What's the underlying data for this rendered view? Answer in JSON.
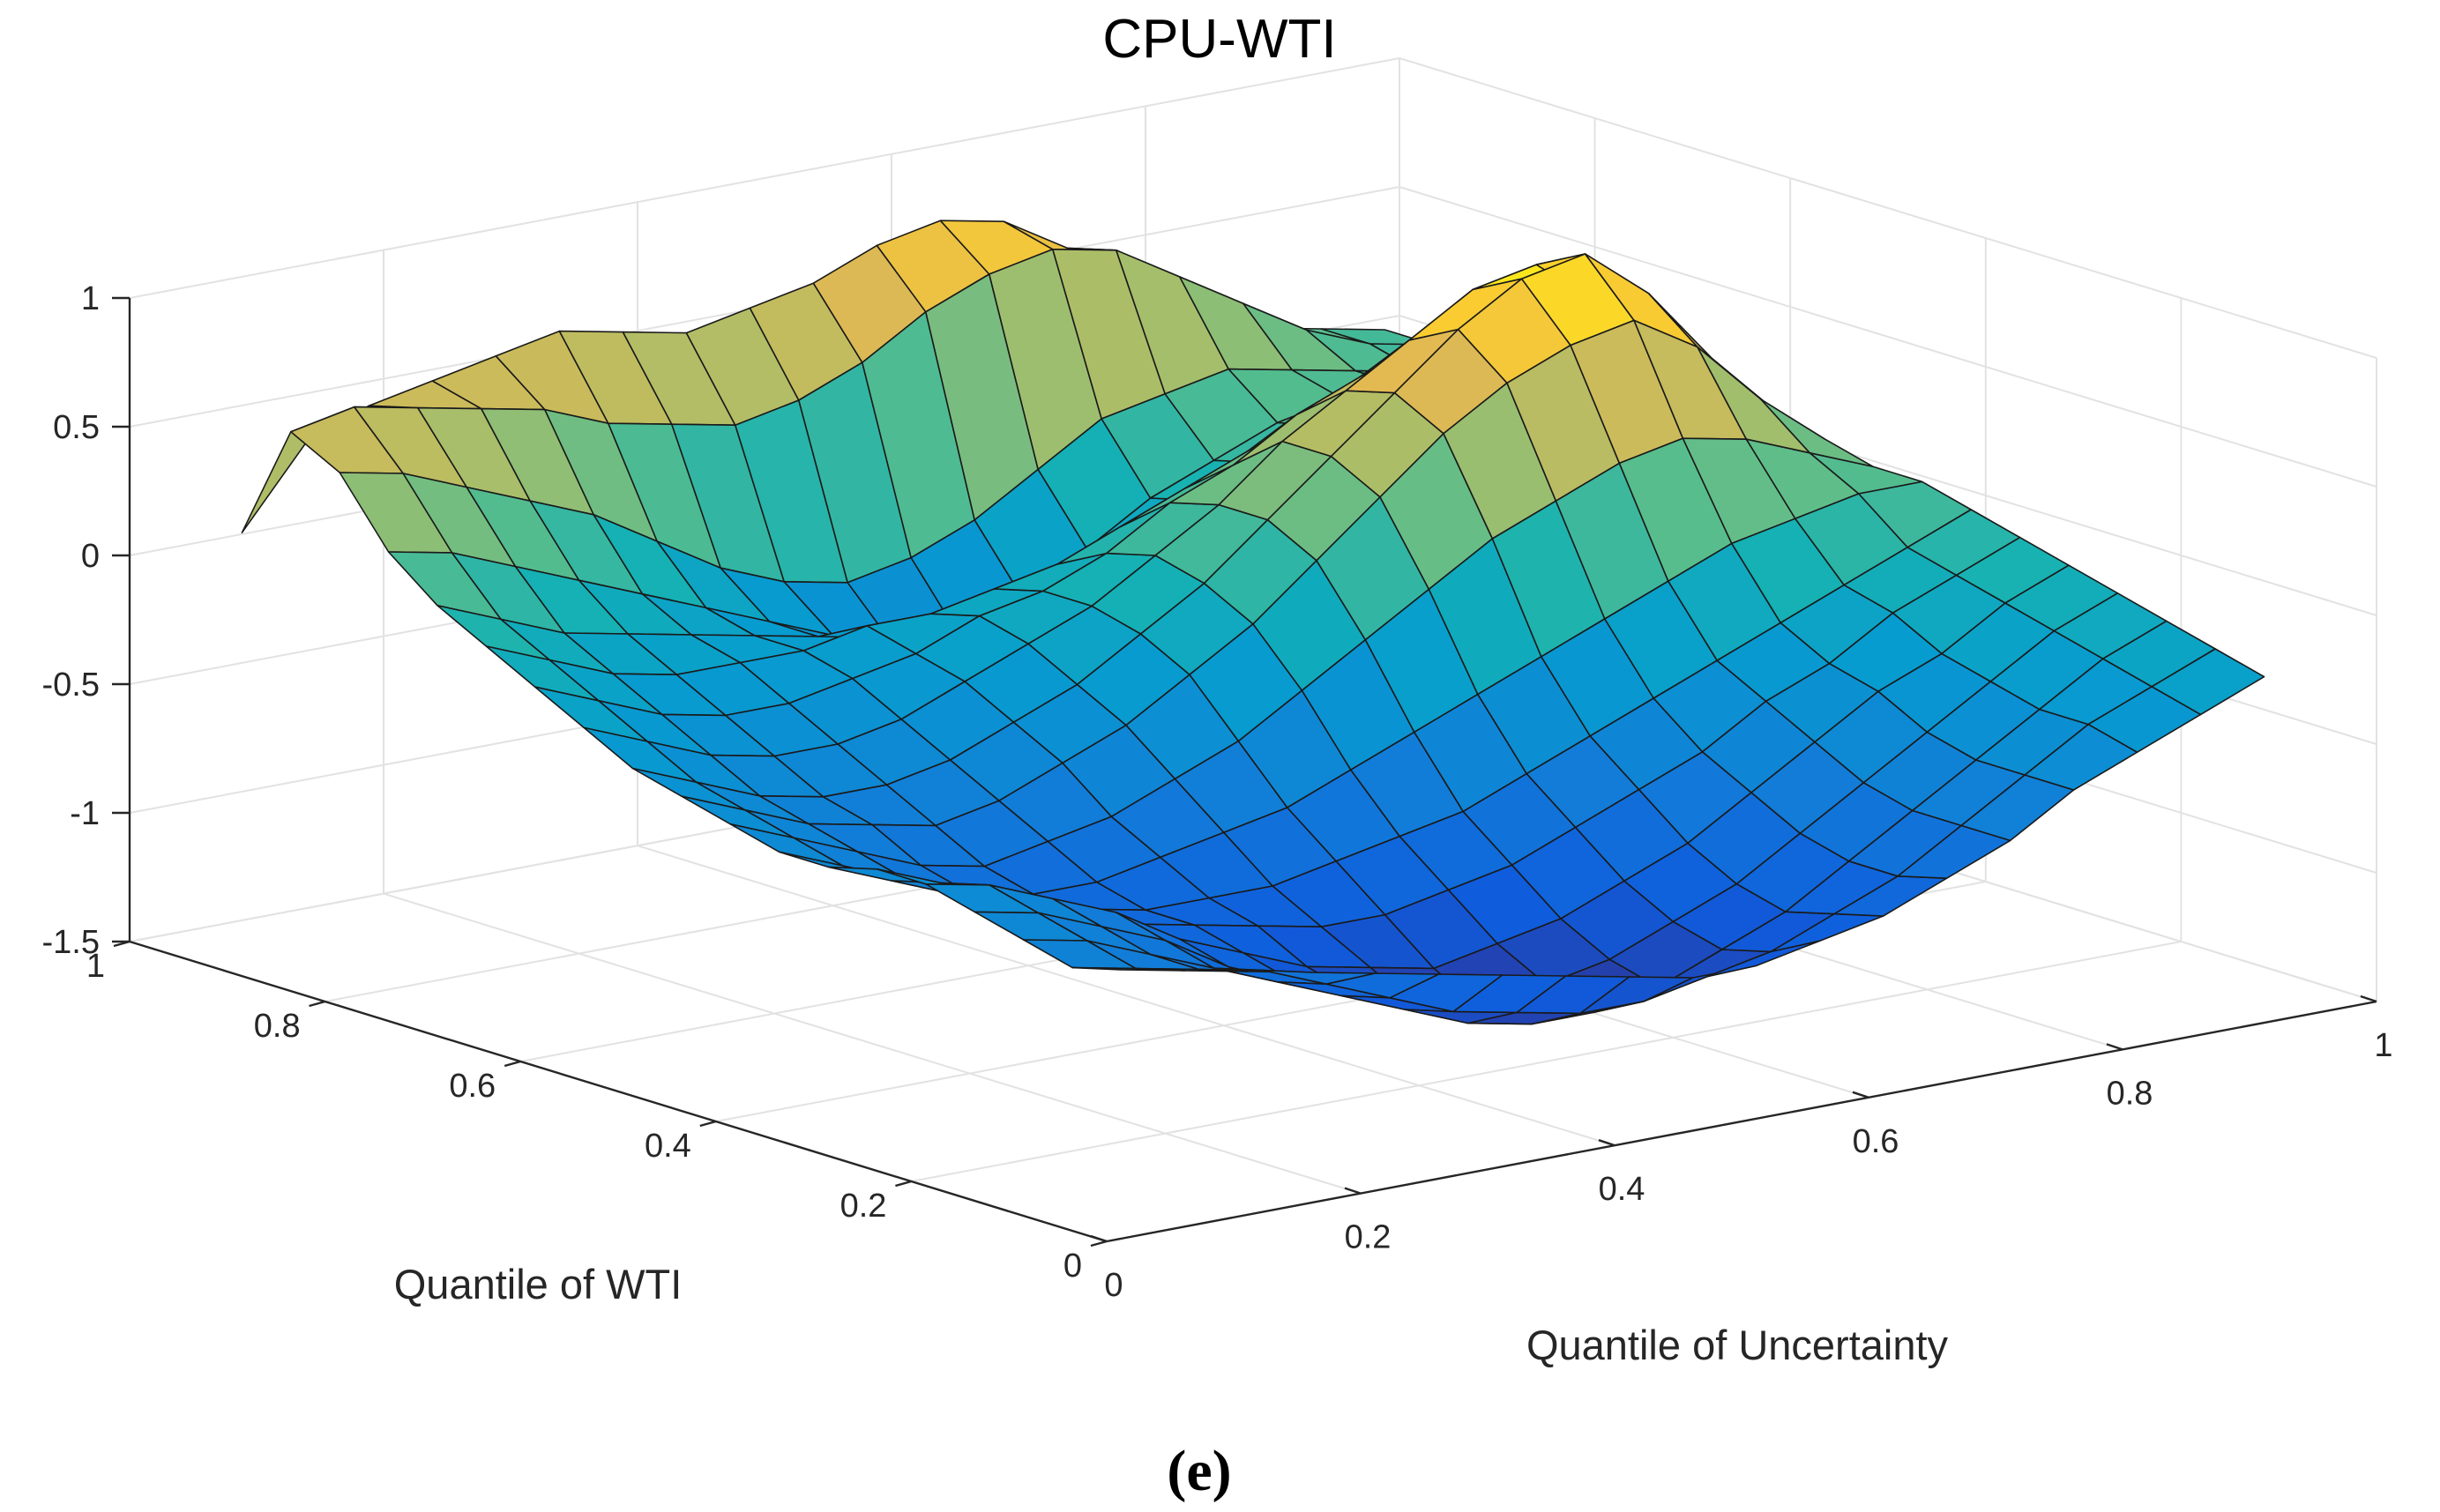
{
  "chart_data": {
    "type": "surface3d",
    "title": "CPU-WTI",
    "caption": "(e)",
    "xlabel": "Quantile of Uncertainty",
    "ylabel": "Quantile of WTI",
    "zlabel": "",
    "xlim": [
      0,
      1
    ],
    "ylim": [
      0,
      1
    ],
    "zlim": [
      -1.5,
      1
    ],
    "x_ticks": [
      "0",
      "0.2",
      "0.4",
      "0.6",
      "0.8",
      "1"
    ],
    "y_ticks": [
      "0",
      "0.2",
      "0.4",
      "0.6",
      "0.8",
      "1"
    ],
    "z_ticks": [
      "-1.5",
      "-1",
      "-0.5",
      "0",
      "0.5",
      "1"
    ],
    "colormap": "parula",
    "grid": true,
    "x": [
      0.05,
      0.1,
      0.15,
      0.2,
      0.25,
      0.3,
      0.35,
      0.4,
      0.45,
      0.5,
      0.55,
      0.6,
      0.65,
      0.7,
      0.75,
      0.8,
      0.85,
      0.9,
      0.95
    ],
    "y": [
      0.05,
      0.1,
      0.15,
      0.2,
      0.25,
      0.3,
      0.35,
      0.4,
      0.45,
      0.5,
      0.55,
      0.6,
      0.65,
      0.7,
      0.75,
      0.8,
      0.85,
      0.9,
      0.95
    ],
    "z": [
      [
        -0.55,
        -0.6,
        -0.65,
        -0.7,
        -0.75,
        -0.8,
        -0.85,
        -0.9,
        -0.95,
        -1.0,
        -1.0,
        -0.95,
        -0.9,
        -0.8,
        -0.7,
        -0.55,
        -0.45,
        -0.35,
        -0.25
      ],
      [
        -0.6,
        -0.65,
        -0.7,
        -0.75,
        -0.85,
        -0.95,
        -1.05,
        -1.1,
        -1.15,
        -1.15,
        -1.1,
        -1.05,
        -0.95,
        -0.85,
        -0.7,
        -0.55,
        -0.4,
        -0.3,
        -0.2
      ],
      [
        -0.55,
        -0.6,
        -0.7,
        -0.8,
        -0.9,
        -1.0,
        -1.1,
        -1.2,
        -1.25,
        -1.25,
        -1.2,
        -1.1,
        -1.0,
        -0.85,
        -0.7,
        -0.55,
        -0.4,
        -0.25,
        -0.15
      ],
      [
        -0.5,
        -0.55,
        -0.65,
        -0.75,
        -0.9,
        -1.0,
        -1.1,
        -1.2,
        -1.25,
        -1.2,
        -1.15,
        -1.05,
        -0.95,
        -0.8,
        -0.65,
        -0.5,
        -0.35,
        -0.2,
        -0.1
      ],
      [
        -0.45,
        -0.5,
        -0.6,
        -0.7,
        -0.85,
        -0.95,
        -1.05,
        -1.1,
        -1.15,
        -1.1,
        -1.05,
        -0.95,
        -0.85,
        -0.7,
        -0.55,
        -0.4,
        -0.3,
        -0.15,
        -0.05
      ],
      [
        -0.45,
        -0.55,
        -0.65,
        -0.75,
        -0.85,
        -0.9,
        -0.95,
        -1.0,
        -1.0,
        -0.95,
        -0.9,
        -0.8,
        -0.7,
        -0.6,
        -0.45,
        -0.35,
        -0.2,
        -0.1,
        0.0
      ],
      [
        -0.5,
        -0.6,
        -0.7,
        -0.8,
        -0.85,
        -0.9,
        -0.9,
        -0.9,
        -0.85,
        -0.8,
        -0.75,
        -0.65,
        -0.55,
        -0.45,
        -0.35,
        -0.25,
        -0.15,
        -0.05,
        0.05
      ],
      [
        -0.5,
        -0.6,
        -0.7,
        -0.8,
        -0.85,
        -0.85,
        -0.8,
        -0.75,
        -0.7,
        -0.6,
        -0.5,
        -0.4,
        -0.3,
        -0.2,
        -0.1,
        0.0,
        0.05,
        0.1,
        0.1
      ],
      [
        -0.45,
        -0.55,
        -0.65,
        -0.75,
        -0.8,
        -0.75,
        -0.7,
        -0.6,
        -0.5,
        -0.35,
        -0.2,
        -0.05,
        0.1,
        0.2,
        0.3,
        0.35,
        0.3,
        0.2,
        0.1
      ],
      [
        -0.4,
        -0.5,
        -0.6,
        -0.65,
        -0.7,
        -0.65,
        -0.55,
        -0.45,
        -0.3,
        -0.15,
        0.05,
        0.25,
        0.45,
        0.6,
        0.7,
        0.75,
        0.6,
        0.35,
        0.15
      ],
      [
        -0.35,
        -0.45,
        -0.55,
        -0.6,
        -0.6,
        -0.55,
        -0.45,
        -0.35,
        -0.2,
        -0.05,
        0.15,
        0.35,
        0.55,
        0.75,
        0.9,
        0.95,
        0.75,
        0.45,
        0.2
      ],
      [
        -0.25,
        -0.35,
        -0.45,
        -0.5,
        -0.5,
        -0.45,
        -0.35,
        -0.25,
        -0.15,
        0.0,
        0.15,
        0.35,
        0.5,
        0.65,
        0.8,
        0.85,
        0.65,
        0.35,
        0.15
      ],
      [
        -0.15,
        -0.25,
        -0.35,
        -0.4,
        -0.4,
        -0.35,
        -0.3,
        -0.2,
        -0.15,
        -0.05,
        0.1,
        0.2,
        0.35,
        0.45,
        0.55,
        0.55,
        0.4,
        0.2,
        0.1
      ],
      [
        -0.05,
        -0.15,
        -0.25,
        -0.3,
        -0.3,
        -0.3,
        -0.25,
        -0.25,
        -0.2,
        -0.15,
        -0.05,
        0.05,
        0.15,
        0.25,
        0.3,
        0.3,
        0.2,
        0.1,
        0.05
      ],
      [
        0.05,
        -0.05,
        -0.15,
        -0.2,
        -0.25,
        -0.3,
        -0.35,
        -0.4,
        -0.45,
        -0.45,
        -0.35,
        -0.2,
        -0.1,
        0.0,
        0.1,
        0.15,
        0.1,
        0.05,
        0.05
      ],
      [
        0.2,
        0.15,
        0.05,
        -0.05,
        -0.15,
        -0.25,
        -0.35,
        -0.45,
        -0.55,
        -0.55,
        -0.45,
        -0.3,
        -0.15,
        -0.05,
        0.05,
        0.1,
        0.1,
        0.05,
        0.05
      ],
      [
        0.45,
        0.4,
        0.3,
        0.2,
        0.1,
        -0.05,
        -0.2,
        -0.3,
        -0.35,
        -0.3,
        -0.2,
        -0.05,
        0.1,
        0.15,
        0.2,
        0.15,
        0.1,
        0.05,
        0.05
      ],
      [
        0.55,
        0.6,
        0.55,
        0.5,
        0.45,
        0.35,
        0.3,
        0.25,
        0.3,
        0.4,
        0.55,
        0.65,
        0.7,
        0.65,
        0.5,
        0.35,
        0.2,
        0.1,
        0.05
      ],
      [
        0.1,
        0.4,
        0.5,
        0.55,
        0.6,
        0.65,
        0.6,
        0.55,
        0.6,
        0.65,
        0.75,
        0.8,
        0.75,
        0.6,
        0.45,
        0.25,
        0.15,
        0.1,
        0.05
      ]
    ]
  }
}
